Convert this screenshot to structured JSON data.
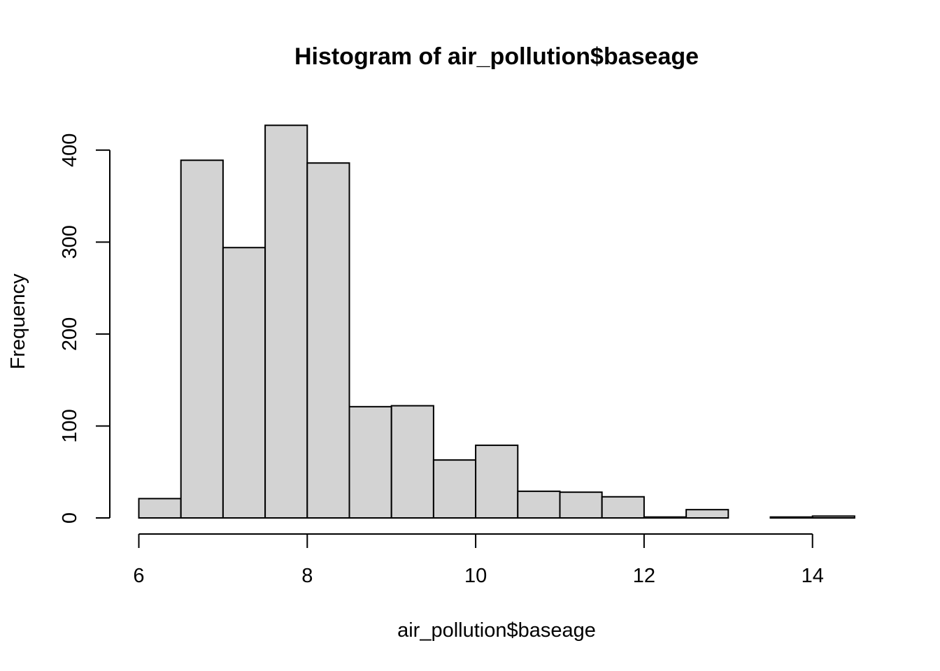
{
  "chart_data": {
    "type": "bar",
    "title": "Histogram of air_pollution$baseage",
    "xlabel": "air_pollution$baseage",
    "ylabel": "Frequency",
    "bins": [
      {
        "start": 6.0,
        "end": 6.5,
        "count": 21
      },
      {
        "start": 6.5,
        "end": 7.0,
        "count": 389
      },
      {
        "start": 7.0,
        "end": 7.5,
        "count": 294
      },
      {
        "start": 7.5,
        "end": 8.0,
        "count": 427
      },
      {
        "start": 8.0,
        "end": 8.5,
        "count": 386
      },
      {
        "start": 8.5,
        "end": 9.0,
        "count": 121
      },
      {
        "start": 9.0,
        "end": 9.5,
        "count": 122
      },
      {
        "start": 9.5,
        "end": 10.0,
        "count": 63
      },
      {
        "start": 10.0,
        "end": 10.5,
        "count": 79
      },
      {
        "start": 10.5,
        "end": 11.0,
        "count": 29
      },
      {
        "start": 11.0,
        "end": 11.5,
        "count": 28
      },
      {
        "start": 11.5,
        "end": 12.0,
        "count": 23
      },
      {
        "start": 12.0,
        "end": 12.5,
        "count": 1
      },
      {
        "start": 12.5,
        "end": 13.0,
        "count": 9
      },
      {
        "start": 13.0,
        "end": 13.5,
        "count": 0
      },
      {
        "start": 13.5,
        "end": 14.0,
        "count": 1
      },
      {
        "start": 14.0,
        "end": 14.5,
        "count": 2
      }
    ],
    "xlim": [
      6,
      14.5
    ],
    "ylim": [
      0,
      440
    ],
    "x_ticks": [
      6,
      8,
      10,
      12,
      14
    ],
    "y_ticks": [
      0,
      100,
      200,
      300,
      400
    ],
    "bar_fill": "#d3d3d3",
    "bar_stroke": "#000000",
    "grid": false,
    "legend": "none"
  }
}
